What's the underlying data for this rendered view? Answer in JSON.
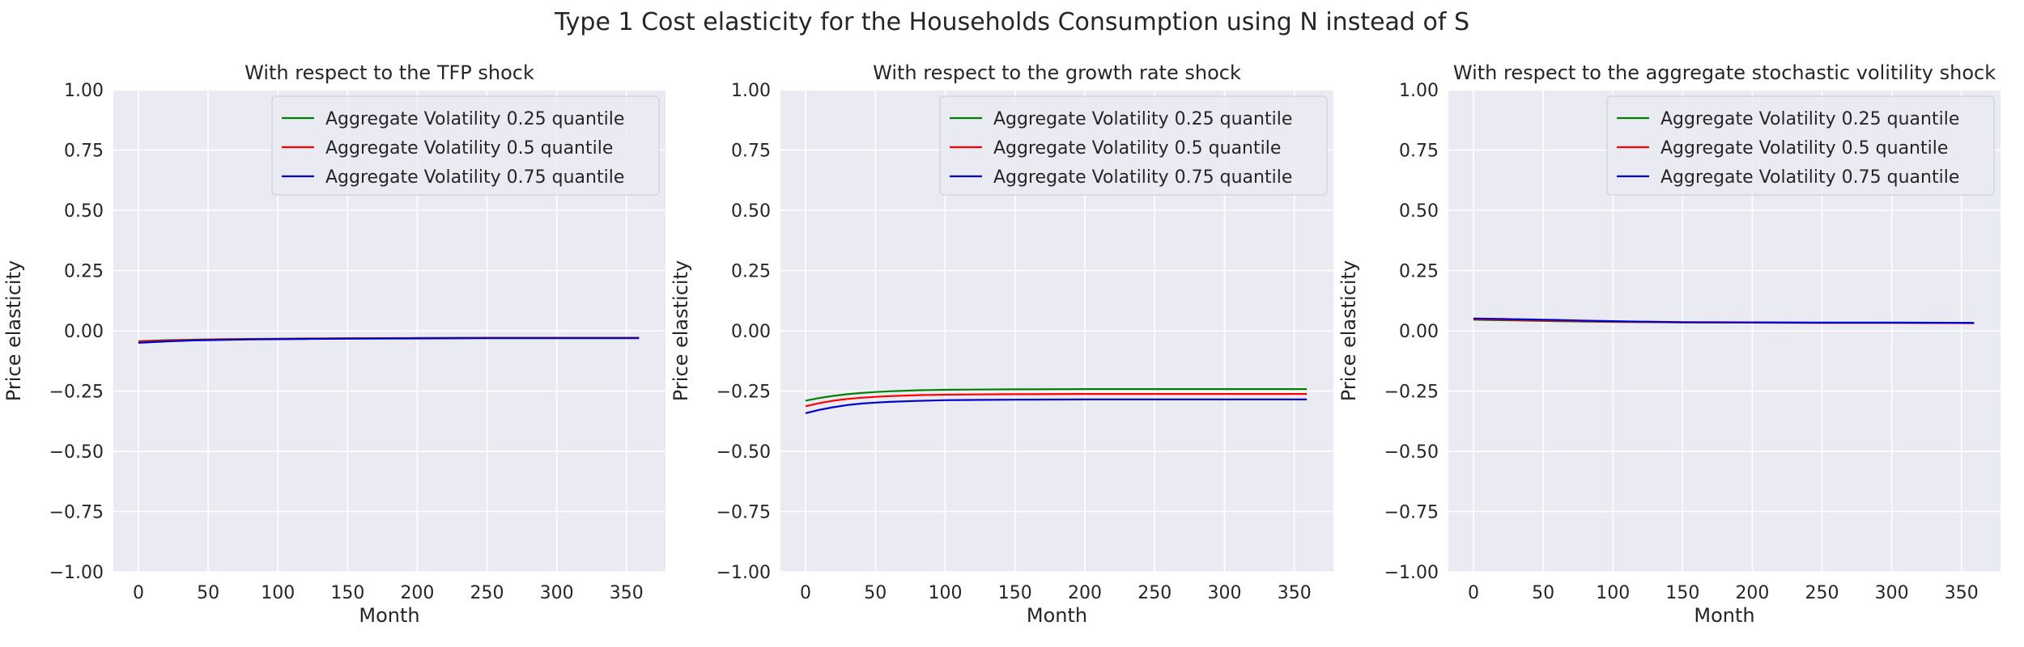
{
  "figure": {
    "suptitle": "Type 1 Cost elasticity for the Households Consumption using N instead of S"
  },
  "chart_data": [
    {
      "type": "line",
      "title": "With respect to the TFP shock",
      "xlabel": "Month",
      "ylabel": "Price elasticity",
      "xlim": [
        -18,
        378
      ],
      "ylim": [
        -1.0,
        1.0
      ],
      "xticks": [
        0,
        50,
        100,
        150,
        200,
        250,
        300,
        350
      ],
      "yticks": [
        -1.0,
        -0.75,
        -0.5,
        -0.25,
        0.0,
        0.25,
        0.5,
        0.75,
        1.0
      ],
      "ytick_labels": [
        "−1.00",
        "−0.75",
        "−0.50",
        "−0.25",
        "0.00",
        "0.25",
        "0.50",
        "0.75",
        "1.00"
      ],
      "grid": true,
      "legend": "top-right",
      "x": [
        0,
        10,
        20,
        30,
        40,
        50,
        60,
        80,
        100,
        120,
        150,
        200,
        250,
        300,
        359
      ],
      "series": [
        {
          "name": "Aggregate Volatility 0.25 quantile",
          "color": "#008000",
          "values": [
            -0.043,
            -0.041,
            -0.039,
            -0.038,
            -0.037,
            -0.036,
            -0.035,
            -0.034,
            -0.033,
            -0.032,
            -0.031,
            -0.03,
            -0.029,
            -0.029,
            -0.029
          ]
        },
        {
          "name": "Aggregate Volatility 0.5 quantile",
          "color": "#ff0000",
          "values": [
            -0.045,
            -0.043,
            -0.041,
            -0.039,
            -0.038,
            -0.037,
            -0.036,
            -0.035,
            -0.034,
            -0.033,
            -0.032,
            -0.031,
            -0.03,
            -0.03,
            -0.03
          ]
        },
        {
          "name": "Aggregate Volatility 0.75 quantile",
          "color": "#0000cd",
          "values": [
            -0.05,
            -0.047,
            -0.044,
            -0.042,
            -0.04,
            -0.039,
            -0.038,
            -0.036,
            -0.035,
            -0.034,
            -0.033,
            -0.032,
            -0.031,
            -0.031,
            -0.031
          ]
        }
      ]
    },
    {
      "type": "line",
      "title": "With respect to the growth rate shock",
      "xlabel": "Month",
      "ylabel": "Price elasticity",
      "xlim": [
        -18,
        378
      ],
      "ylim": [
        -1.0,
        1.0
      ],
      "xticks": [
        0,
        50,
        100,
        150,
        200,
        250,
        300,
        350
      ],
      "yticks": [
        -1.0,
        -0.75,
        -0.5,
        -0.25,
        0.0,
        0.25,
        0.5,
        0.75,
        1.0
      ],
      "ytick_labels": [
        "−1.00",
        "−0.75",
        "−0.50",
        "−0.25",
        "0.00",
        "0.25",
        "0.50",
        "0.75",
        "1.00"
      ],
      "grid": true,
      "legend": "top-right",
      "x": [
        0,
        10,
        20,
        30,
        40,
        50,
        60,
        80,
        100,
        120,
        150,
        200,
        250,
        300,
        359
      ],
      "series": [
        {
          "name": "Aggregate Volatility 0.25 quantile",
          "color": "#008000",
          "values": [
            -0.29,
            -0.279,
            -0.27,
            -0.263,
            -0.258,
            -0.254,
            -0.251,
            -0.247,
            -0.245,
            -0.244,
            -0.243,
            -0.242,
            -0.242,
            -0.242,
            -0.242
          ]
        },
        {
          "name": "Aggregate Volatility 0.5 quantile",
          "color": "#ff0000",
          "values": [
            -0.313,
            -0.3,
            -0.29,
            -0.283,
            -0.278,
            -0.274,
            -0.271,
            -0.267,
            -0.265,
            -0.264,
            -0.263,
            -0.262,
            -0.262,
            -0.262,
            -0.262
          ]
        },
        {
          "name": "Aggregate Volatility 0.75 quantile",
          "color": "#0000cd",
          "values": [
            -0.342,
            -0.328,
            -0.317,
            -0.308,
            -0.302,
            -0.298,
            -0.295,
            -0.291,
            -0.288,
            -0.287,
            -0.286,
            -0.285,
            -0.285,
            -0.285,
            -0.285
          ]
        }
      ]
    },
    {
      "type": "line",
      "title": "With respect to the aggregate stochastic volitility shock",
      "xlabel": "Month",
      "ylabel": "Price elasticity",
      "xlim": [
        -18,
        378
      ],
      "ylim": [
        -1.0,
        1.0
      ],
      "xticks": [
        0,
        50,
        100,
        150,
        200,
        250,
        300,
        350
      ],
      "yticks": [
        -1.0,
        -0.75,
        -0.5,
        -0.25,
        0.0,
        0.25,
        0.5,
        0.75,
        1.0
      ],
      "ytick_labels": [
        "−1.00",
        "−0.75",
        "−0.50",
        "−0.25",
        "0.00",
        "0.25",
        "0.50",
        "0.75",
        "1.00"
      ],
      "grid": true,
      "legend": "top-right",
      "x": [
        0,
        10,
        20,
        30,
        40,
        50,
        60,
        80,
        100,
        120,
        150,
        200,
        250,
        300,
        359
      ],
      "series": [
        {
          "name": "Aggregate Volatility 0.25 quantile",
          "color": "#008000",
          "values": [
            0.046,
            0.045,
            0.044,
            0.043,
            0.042,
            0.041,
            0.04,
            0.038,
            0.037,
            0.036,
            0.035,
            0.034,
            0.033,
            0.033,
            0.032
          ]
        },
        {
          "name": "Aggregate Volatility 0.5 quantile",
          "color": "#ff0000",
          "values": [
            0.048,
            0.047,
            0.046,
            0.045,
            0.044,
            0.043,
            0.042,
            0.04,
            0.038,
            0.037,
            0.035,
            0.034,
            0.033,
            0.033,
            0.032
          ]
        },
        {
          "name": "Aggregate Volatility 0.75 quantile",
          "color": "#0000cd",
          "values": [
            0.051,
            0.05,
            0.049,
            0.048,
            0.047,
            0.046,
            0.045,
            0.042,
            0.04,
            0.038,
            0.036,
            0.035,
            0.034,
            0.034,
            0.033
          ]
        }
      ]
    }
  ]
}
